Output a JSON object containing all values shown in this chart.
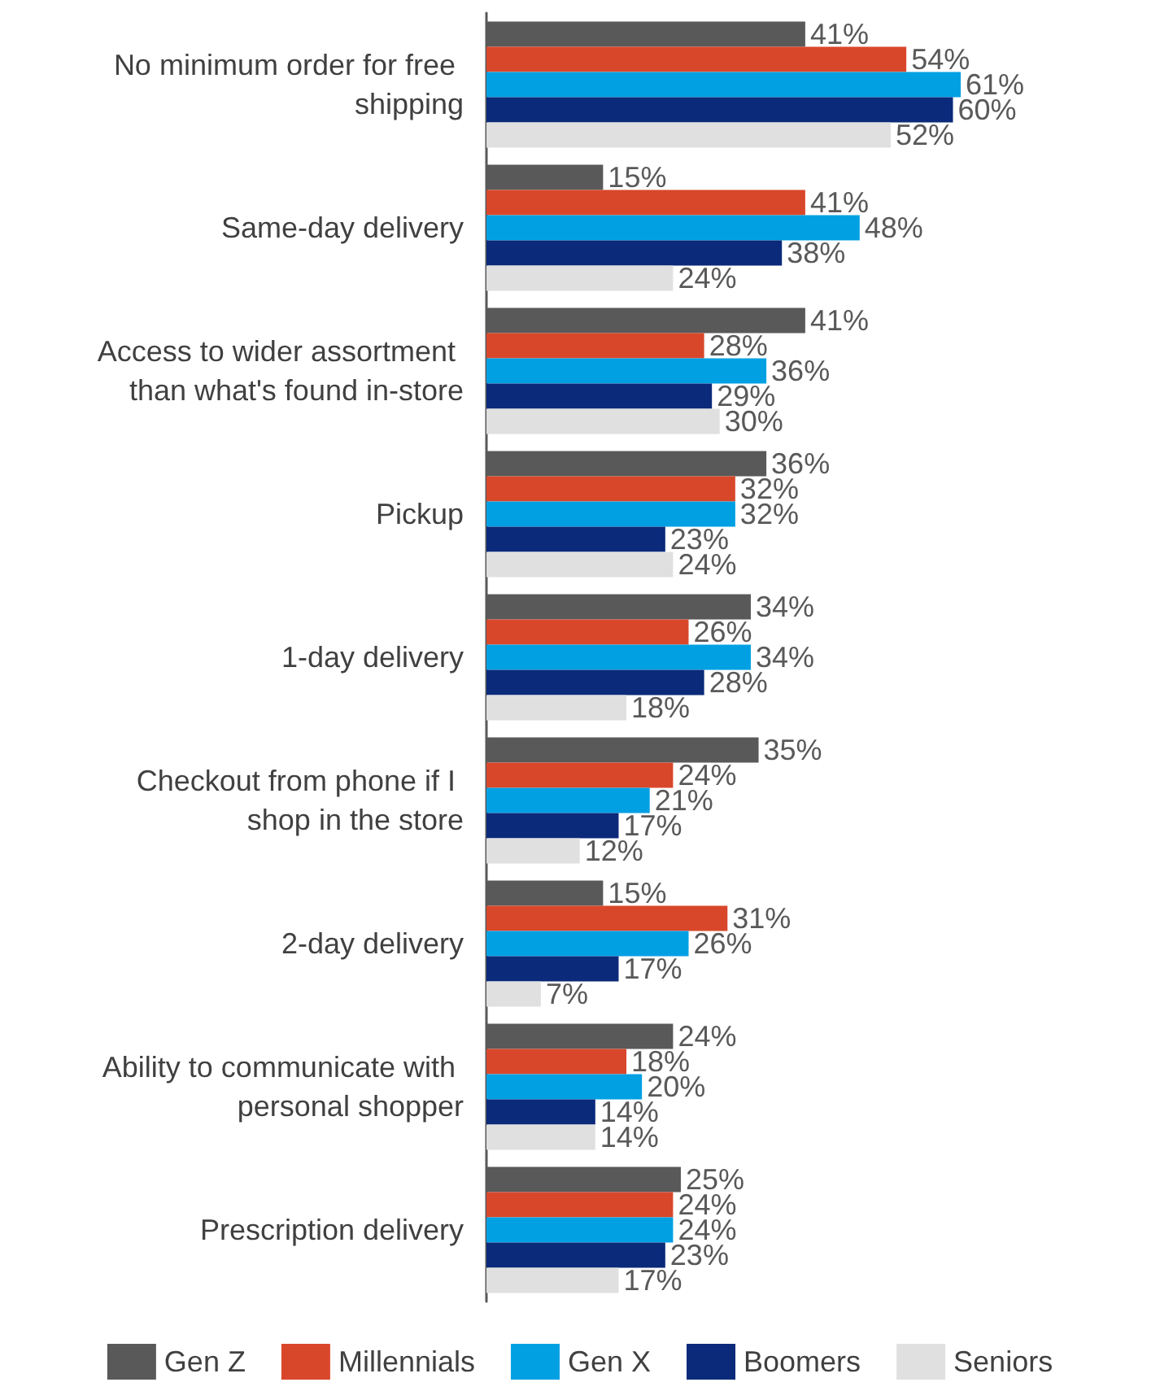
{
  "chart_data": {
    "type": "bar",
    "orientation": "horizontal",
    "legend": "bottom",
    "categories": [
      "No minimum order for free shipping",
      "Same-day delivery",
      "Access to wider assortment than what's found in-store",
      "Pickup",
      "1-day delivery",
      "Checkout from phone if I shop in the store",
      "2-day delivery",
      "Ability to communicate with personal shopper",
      "Prescription delivery"
    ],
    "series": [
      {
        "name": "Gen Z",
        "color": "#595959",
        "values": [
          41,
          15,
          41,
          36,
          34,
          35,
          15,
          24,
          25
        ],
        "value_labels": [
          "41%",
          "15%",
          "41%",
          "36%",
          "34%",
          "35%",
          "15%",
          "24%",
          "25%"
        ]
      },
      {
        "name": "Millennials",
        "color": "#d9472b",
        "values": [
          54,
          41,
          28,
          32,
          26,
          24,
          31,
          18,
          24
        ],
        "value_labels": [
          "54%",
          "41%",
          "28%",
          "32%",
          "26%",
          "24%",
          "31%",
          "18%",
          "24%"
        ]
      },
      {
        "name": "Gen X",
        "color": "#00a0e3",
        "values": [
          61,
          48,
          36,
          32,
          34,
          21,
          26,
          20,
          24
        ],
        "value_labels": [
          "61%",
          "48%",
          "36%",
          "32%",
          "34%",
          "21%",
          "26%",
          "20%",
          "24%"
        ]
      },
      {
        "name": "Boomers",
        "color": "#0b2a7a",
        "values": [
          60,
          38,
          29,
          23,
          28,
          17,
          17,
          14,
          23
        ],
        "value_labels": [
          "60%",
          "38%",
          "29%",
          "23%",
          "28%",
          "17%",
          "17%",
          "14%",
          "23%"
        ]
      },
      {
        "name": "Seniors",
        "color": "#e0e0e0",
        "values": [
          52,
          24,
          30,
          24,
          18,
          12,
          7,
          14,
          17
        ],
        "value_labels": [
          "52%",
          "24%",
          "30%",
          "24%",
          "18%",
          "12%",
          "7%",
          "14%",
          "17%"
        ]
      }
    ]
  }
}
